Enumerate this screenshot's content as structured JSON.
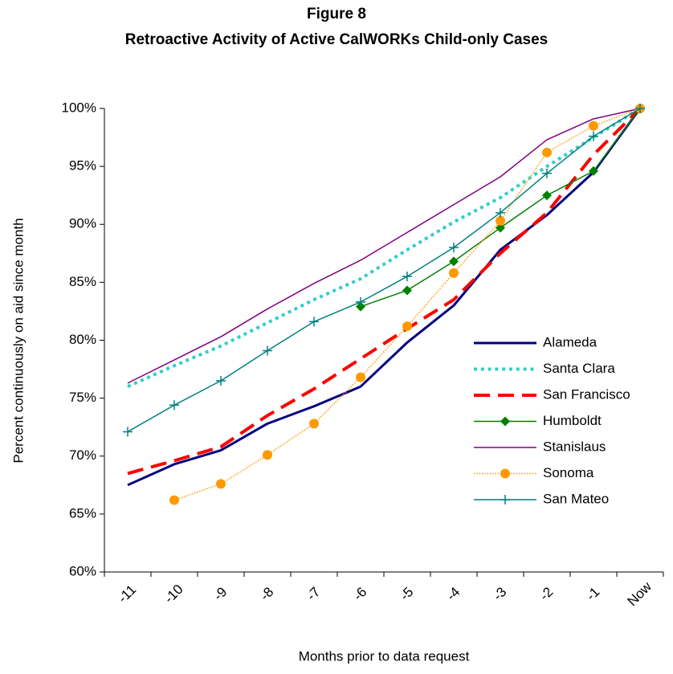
{
  "chart_data": {
    "type": "line",
    "title": "Figure 8",
    "subtitle": "Retroactive Activity of Active CalWORKs Child-only Cases",
    "x_label": "Months prior to data request",
    "y_label": "Percent continuously on aid since month",
    "categories": [
      "-11",
      "-10",
      "-9",
      "-8",
      "-7",
      "-6",
      "-5",
      "-4",
      "-3",
      "-2",
      "-1",
      "Now"
    ],
    "ylim": [
      60,
      100
    ],
    "yticks": [
      {
        "value": 60,
        "label": "60%"
      },
      {
        "value": 65,
        "label": "65%"
      },
      {
        "value": 70,
        "label": "70%"
      },
      {
        "value": 75,
        "label": "75%"
      },
      {
        "value": 80,
        "label": "80%"
      },
      {
        "value": 85,
        "label": "85%"
      },
      {
        "value": 90,
        "label": "90%"
      },
      {
        "value": 95,
        "label": "95%"
      },
      {
        "value": 100,
        "label": "100%"
      }
    ],
    "legend": "right",
    "series": [
      {
        "name": "Alameda",
        "color": "#000080",
        "width": 3,
        "dash": "solid",
        "marker": "none",
        "values": [
          67.5,
          69.3,
          70.5,
          72.8,
          74.3,
          76.0,
          79.8,
          83.0,
          87.8,
          90.8,
          94.5,
          100
        ]
      },
      {
        "name": "Santa Clara",
        "color": "#33cccc",
        "width": 4,
        "dash": "dotted",
        "marker": "none",
        "values": [
          76.0,
          77.8,
          79.5,
          81.5,
          83.5,
          85.3,
          87.8,
          90.2,
          92.3,
          95.0,
          97.5,
          100
        ]
      },
      {
        "name": "San Francisco",
        "color": "#ff0000",
        "width": 4,
        "dash": "dashed",
        "marker": "none",
        "values": [
          68.5,
          69.6,
          70.8,
          73.5,
          75.8,
          78.4,
          81.0,
          83.5,
          87.5,
          91.0,
          96.0,
          100
        ]
      },
      {
        "name": "Humboldt",
        "color": "#008000",
        "width": 1.5,
        "dash": "solid",
        "marker": "diamond",
        "values": [
          null,
          null,
          null,
          null,
          null,
          82.9,
          84.3,
          86.8,
          89.7,
          92.5,
          94.6,
          100
        ]
      },
      {
        "name": "Stanislaus",
        "color": "#800080",
        "width": 1.5,
        "dash": "solid",
        "marker": "none",
        "values": [
          76.3,
          78.3,
          80.3,
          82.7,
          84.9,
          86.9,
          89.3,
          91.7,
          94.1,
          97.3,
          99.1,
          100
        ]
      },
      {
        "name": "Sonoma",
        "color": "#ff9900",
        "width": 1.5,
        "dash": "dotted",
        "marker": "circle",
        "values": [
          null,
          66.2,
          67.6,
          70.1,
          72.8,
          76.8,
          81.2,
          85.8,
          90.3,
          96.2,
          98.5,
          100
        ]
      },
      {
        "name": "San Mateo",
        "color": "#008080",
        "width": 1.5,
        "dash": "solid",
        "marker": "plus",
        "values": [
          72.1,
          74.4,
          76.5,
          79.1,
          81.6,
          83.3,
          85.5,
          88.0,
          91.0,
          94.4,
          97.6,
          100
        ]
      }
    ]
  }
}
